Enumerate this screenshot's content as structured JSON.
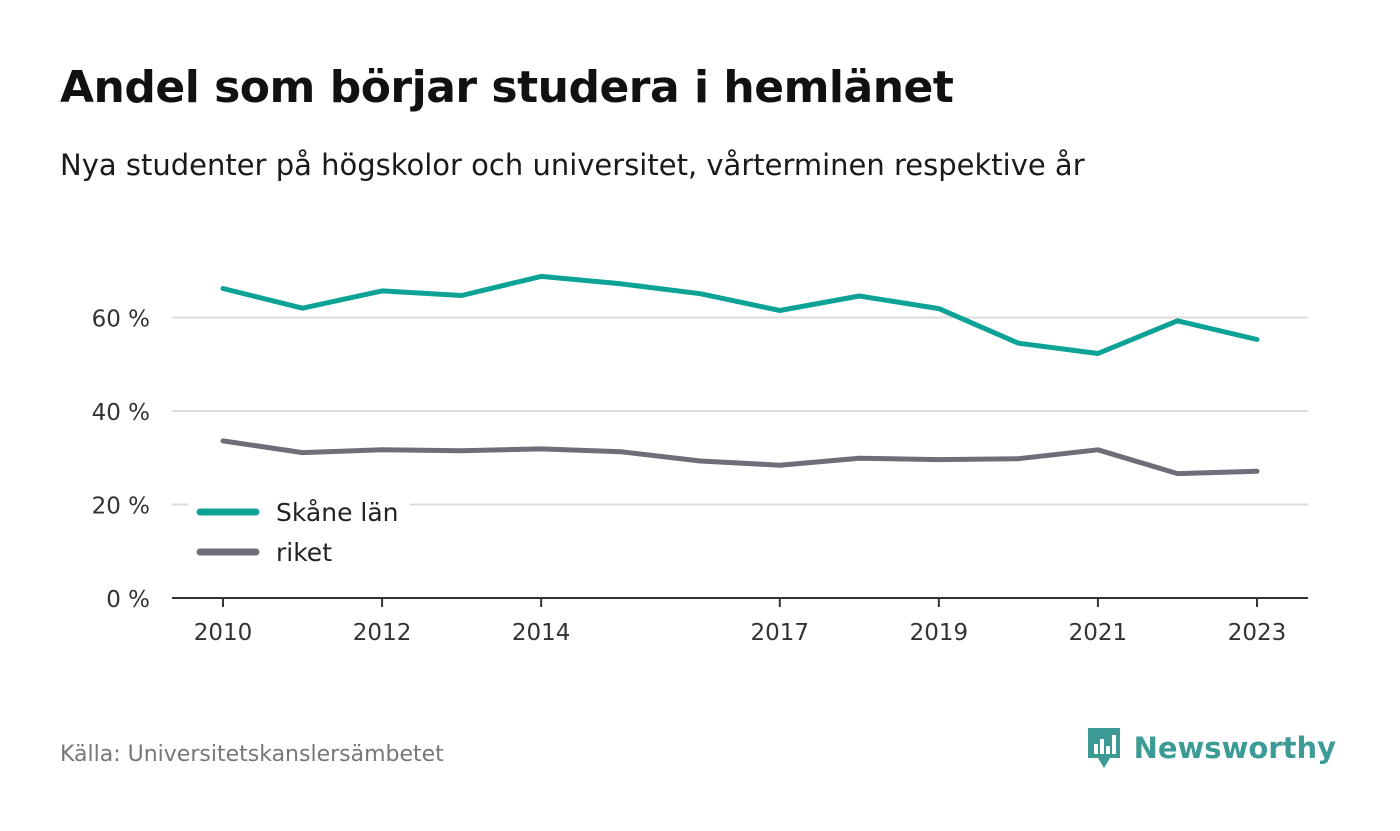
{
  "title": "Andel som börjar studera i hemlänet",
  "subtitle": "Nya studenter på högskolor och universitet, vårterminen respektive år",
  "source": "Källa: Universitetskanslersämbetet",
  "brand": {
    "name": "Newsworthy",
    "color": "#3d9b95",
    "icon": "newsworthy-logo-icon"
  },
  "chart_data": {
    "type": "line",
    "x": [
      2010,
      2011,
      2012,
      2013,
      2014,
      2015,
      2016,
      2017,
      2018,
      2019,
      2020,
      2021,
      2022,
      2023
    ],
    "x_ticks": [
      "2010",
      "2012",
      "2014",
      "2017",
      "2019",
      "2021",
      "2023"
    ],
    "y_ticks": [
      0,
      20,
      40,
      60
    ],
    "y_tick_labels": [
      "0 %",
      "20 %",
      "40 %",
      "60 %"
    ],
    "ylim": [
      0,
      75
    ],
    "grid": true,
    "legend_position": "bottom-left",
    "series": [
      {
        "name": "Skåne län",
        "color": "#0ca396",
        "values": [
          66.2,
          62.0,
          65.7,
          64.7,
          68.8,
          67.2,
          65.1,
          61.5,
          64.6,
          61.9,
          54.5,
          52.3,
          59.3,
          55.3
        ]
      },
      {
        "name": "riket",
        "color": "#6e6e78",
        "values": [
          33.6,
          31.1,
          31.7,
          31.5,
          31.9,
          31.3,
          29.3,
          28.4,
          29.9,
          29.6,
          29.8,
          31.7,
          26.6,
          27.1
        ]
      }
    ]
  }
}
